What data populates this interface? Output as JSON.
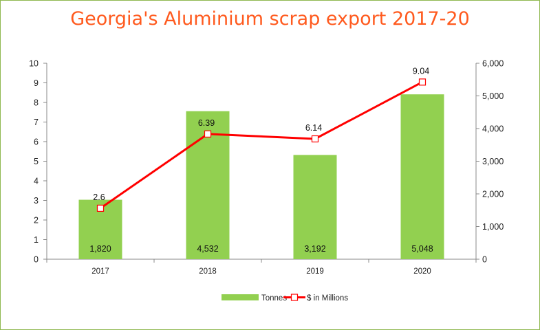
{
  "chart_data": {
    "type": "bar",
    "title": "Georgia's Aluminium scrap export 2017-20",
    "categories": [
      "2017",
      "2018",
      "2019",
      "2020"
    ],
    "series": [
      {
        "name": "Tonnes",
        "type": "bar",
        "axis": "right",
        "values": [
          1820,
          4532,
          3192,
          5048
        ],
        "labels": [
          "1,820",
          "4,532",
          "3,192",
          "5,048"
        ],
        "color": "#92d050"
      },
      {
        "name": "$ in Millions",
        "type": "line",
        "axis": "left",
        "values": [
          2.6,
          6.39,
          6.14,
          9.04
        ],
        "labels": [
          "2.6",
          "6.39",
          "6.14",
          "9.04"
        ],
        "color": "#ff0000"
      }
    ],
    "ylim_left": [
      0,
      10
    ],
    "yticks_left": [
      "0",
      "1",
      "2",
      "3",
      "4",
      "5",
      "6",
      "7",
      "8",
      "9",
      "10"
    ],
    "ylim_right": [
      0,
      6000
    ],
    "yticks_right": [
      "0",
      "1,000",
      "2,000",
      "3,000",
      "4,000",
      "5,000",
      "6,000"
    ],
    "grid": false,
    "legend_position": "bottom"
  },
  "colors": {
    "title": "#ff5a1e",
    "bar": "#92d050",
    "line": "#ff0000",
    "axis": "#888888"
  }
}
